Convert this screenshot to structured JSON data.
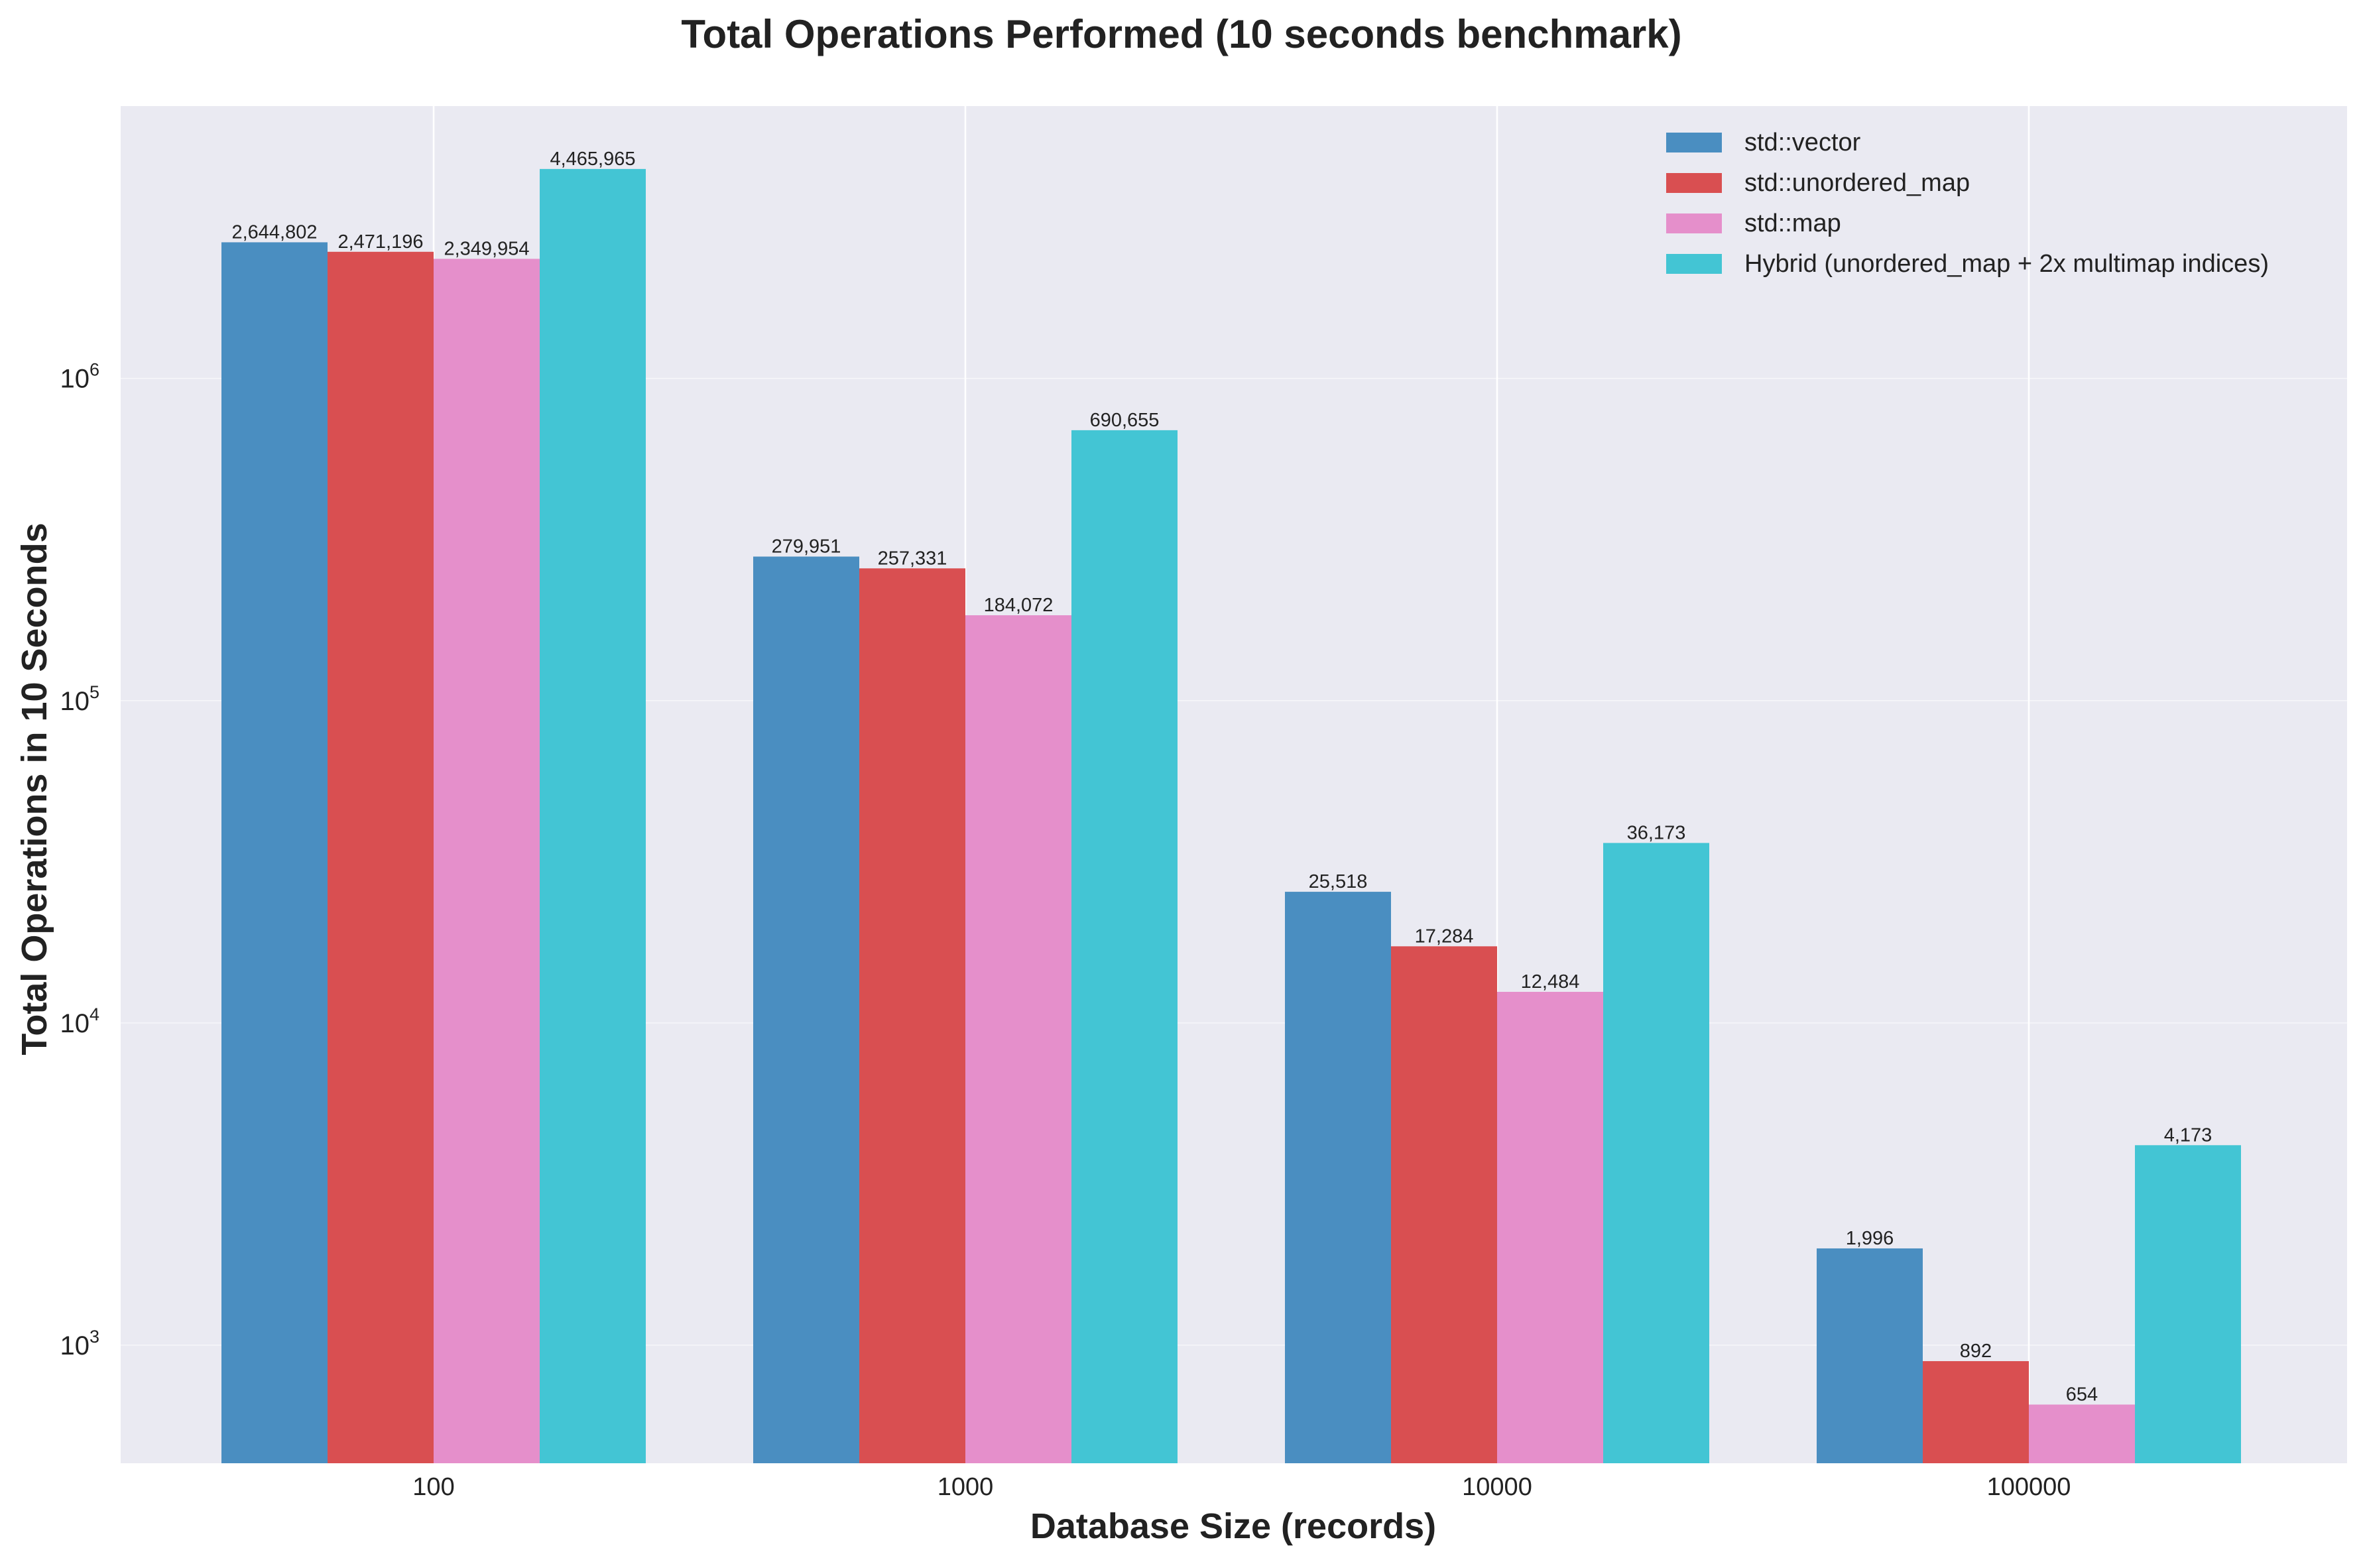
{
  "chart_data": {
    "type": "bar",
    "title": "Total Operations Performed (10 seconds benchmark)",
    "xlabel": "Database Size (records)",
    "ylabel": "Total Operations in 10 Seconds",
    "yscale": "log",
    "ylim": [
      430,
      7000000
    ],
    "yticks": [
      1000,
      10000,
      100000,
      1000000
    ],
    "ytick_labels": [
      {
        "base": "10",
        "exp": "3"
      },
      {
        "base": "10",
        "exp": "4"
      },
      {
        "base": "10",
        "exp": "5"
      },
      {
        "base": "10",
        "exp": "6"
      }
    ],
    "categories": [
      "100",
      "1000",
      "10000",
      "100000"
    ],
    "grid": true,
    "legend_position": "top-right",
    "series": [
      {
        "name": "std::vector",
        "color": "#4a8ec1",
        "values": [
          2644802,
          279951,
          25518,
          1996
        ],
        "labels": [
          "2,644,802",
          "279,951",
          "25,518",
          "1,996"
        ]
      },
      {
        "name": "std::unordered_map",
        "color": "#d94f51",
        "values": [
          2471196,
          257331,
          17284,
          892
        ],
        "labels": [
          "2,471,196",
          "257,331",
          "17,284",
          "892"
        ]
      },
      {
        "name": "std::map",
        "color": "#e58fcb",
        "values": [
          2349954,
          184072,
          12484,
          654
        ],
        "labels": [
          "2,349,954",
          "184,072",
          "12,484",
          "654"
        ]
      },
      {
        "name": "Hybrid (unordered_map + 2x multimap indices)",
        "color": "#43c5d4",
        "values": [
          4465965,
          690655,
          36173,
          4173
        ],
        "labels": [
          "4,465,965",
          "690,655",
          "36,173",
          "4,173"
        ]
      }
    ]
  }
}
